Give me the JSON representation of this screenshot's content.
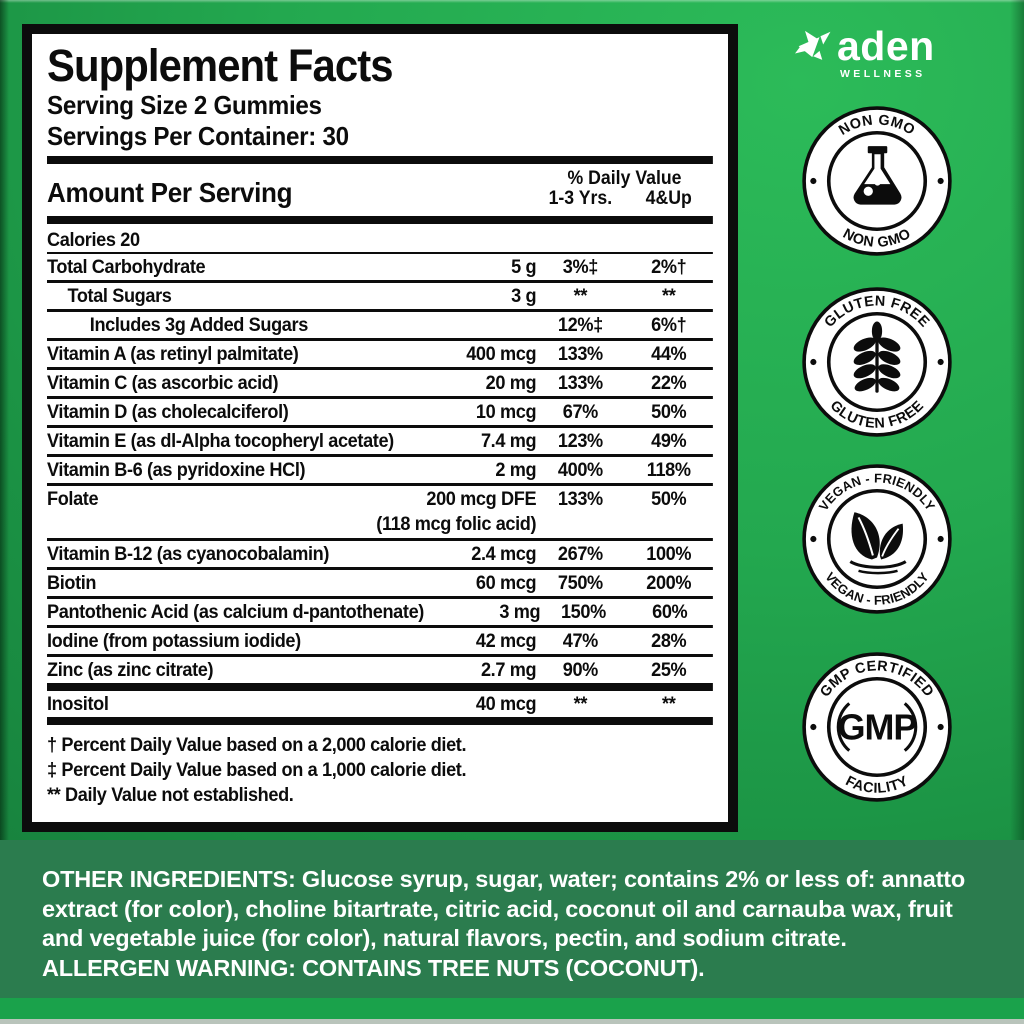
{
  "brand": {
    "name": "aden",
    "tagline": "WELLNESS",
    "icon": "origami-bird-icon"
  },
  "panel": {
    "title": "Supplement Facts",
    "serving_size": "Serving Size 2 Gummies",
    "servings_per_container": "Servings Per Container: 30",
    "amount_label": "Amount Per Serving",
    "dv_label": "% Daily Value",
    "dv_col1": "1-3 Yrs.",
    "dv_col2": "4&Up",
    "rows": [
      {
        "name": "Calories 20",
        "amount": "",
        "dv1": "",
        "dv2": "",
        "divider": "thin"
      },
      {
        "name": "Total Carbohydrate",
        "amount": "5 g",
        "dv1": "3%‡",
        "dv2": "2%†"
      },
      {
        "name": "Total Sugars",
        "amount": "3 g",
        "dv1": "**",
        "dv2": "**",
        "indent": 1
      },
      {
        "name": "Includes 3g Added Sugars",
        "amount": "",
        "dv1": "12%‡",
        "dv2": "6%†",
        "indent": 2
      },
      {
        "name": "Vitamin A (as retinyl palmitate)",
        "amount": "400 mcg",
        "dv1": "133%",
        "dv2": "44%"
      },
      {
        "name": "Vitamin C (as ascorbic acid)",
        "amount": "20 mg",
        "dv1": "133%",
        "dv2": "22%"
      },
      {
        "name": "Vitamin D (as cholecalciferol)",
        "amount": "10 mcg",
        "dv1": "67%",
        "dv2": "50%"
      },
      {
        "name": "Vitamin E (as dl-Alpha tocopheryl acetate)",
        "amount": "7.4 mg",
        "dv1": "123%",
        "dv2": "49%"
      },
      {
        "name": "Vitamin B-6 (as pyridoxine HCl)",
        "amount": "2 mg",
        "dv1": "400%",
        "dv2": "118%"
      },
      {
        "name": "Folate",
        "amount": "200 mcg DFE",
        "dv1": "133%",
        "dv2": "50%",
        "note": "(118 mcg folic acid)"
      },
      {
        "name": "Vitamin B-12 (as cyanocobalamin)",
        "amount": "2.4 mcg",
        "dv1": "267%",
        "dv2": "100%"
      },
      {
        "name": "Biotin",
        "amount": "60 mcg",
        "dv1": "750%",
        "dv2": "200%"
      },
      {
        "name": "Pantothenic Acid (as calcium d-pantothenate)",
        "amount": "3 mg",
        "dv1": "150%",
        "dv2": "60%"
      },
      {
        "name": "Iodine (from potassium iodide)",
        "amount": "42 mcg",
        "dv1": "47%",
        "dv2": "28%"
      },
      {
        "name": "Zinc (as zinc citrate)",
        "amount": "2.7 mg",
        "dv1": "90%",
        "dv2": "25%",
        "divider": "thick"
      },
      {
        "name": "Inositol",
        "amount": "40 mcg",
        "dv1": "**",
        "dv2": "**",
        "divider": "thick"
      }
    ],
    "footnotes": [
      "† Percent Daily Value based on a 2,000 calorie diet.",
      "‡ Percent Daily Value based on a 1,000 calorie diet.",
      "** Daily Value not established."
    ]
  },
  "badges": [
    {
      "top": "NON GMO",
      "bottom": "NON GMO",
      "icon": "flask-icon"
    },
    {
      "top": "GLUTEN FREE",
      "bottom": "GLUTEN FREE",
      "icon": "wheat-icon"
    },
    {
      "top": "VEGAN - FRIENDLY",
      "bottom": "VEGAN - FRIENDLY",
      "icon": "leaves-icon"
    },
    {
      "top": "GMP CERTIFIED",
      "bottom": "FACILITY",
      "center": "GMP",
      "icon": "gmp-monogram"
    }
  ],
  "footer": {
    "other_ingredients": "OTHER INGREDIENTS: Glucose syrup, sugar, water; contains 2% or less of: annatto extract (for color), choline bitartrate, citric acid, coconut oil and carnauba wax, fruit and vegetable juice (for color), natural flavors, pectin, and sodium citrate.",
    "allergen": "ALLERGEN WARNING: CONTAINS TREE NUTS (COCONUT)."
  },
  "colors": {
    "bright_green": "#2cbb59",
    "mid_green": "#1f9d4a",
    "dark_green": "#15793a",
    "footer_panel_green": "#2b7c4e",
    "footer_accent_green": "#1aa24b",
    "bottom_edge_gray": "#b9c4bb",
    "label_black": "#0c0c0c",
    "white": "#ffffff"
  }
}
